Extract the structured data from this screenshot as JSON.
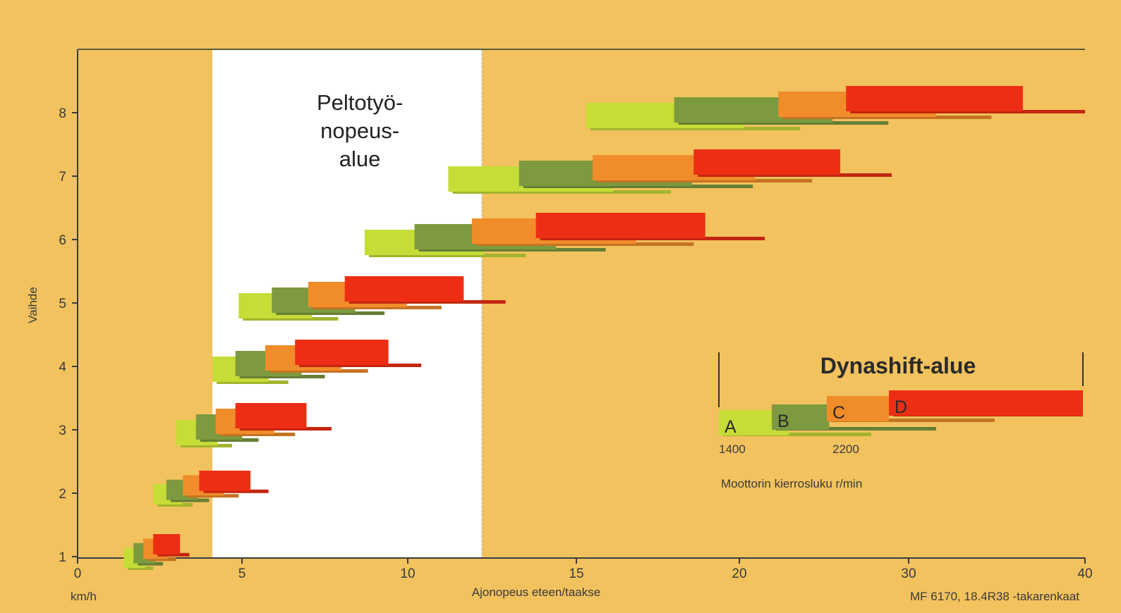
{
  "chart_data": {
    "type": "bar",
    "subtype": "floating-range",
    "xlabel": "Ajonopeus eteen/taakse",
    "x_unit": "km/h",
    "ylabel": "Vaihde",
    "x_ticks": [
      {
        "value": 0,
        "label": "0"
      },
      {
        "value": 5,
        "label": "5"
      },
      {
        "value": 10,
        "label": "10"
      },
      {
        "value": 15,
        "label": "15"
      },
      {
        "value": 20,
        "label": "20"
      },
      {
        "value": 30,
        "label": "30"
      },
      {
        "value": 40,
        "label": "40"
      }
    ],
    "y_ticks": [
      "1",
      "2",
      "3",
      "4",
      "5",
      "6",
      "7",
      "8"
    ],
    "field_zone": {
      "label_lines": [
        "Peltotyö-",
        "nopeus-",
        "alue"
      ],
      "x_range": [
        4.1,
        12.2
      ]
    },
    "series_colors": {
      "A": "#c6dc37",
      "B": "#7d9a3f",
      "C": "#f08c2a",
      "D": "#ee2e14"
    },
    "gears": [
      {
        "gear": 1,
        "ranges": {
          "A": [
            1.4,
            2.3
          ],
          "B": [
            1.7,
            2.6
          ],
          "C": [
            2.0,
            3.0
          ],
          "D": [
            2.3,
            3.4
          ]
        }
      },
      {
        "gear": 2,
        "ranges": {
          "A": [
            2.3,
            3.5
          ],
          "B": [
            2.7,
            4.0
          ],
          "C": [
            3.2,
            4.9
          ],
          "D": [
            3.7,
            5.8
          ]
        }
      },
      {
        "gear": 3,
        "ranges": {
          "A": [
            3.0,
            4.7
          ],
          "B": [
            3.6,
            5.5
          ],
          "C": [
            4.2,
            6.6
          ],
          "D": [
            4.8,
            7.7
          ]
        }
      },
      {
        "gear": 4,
        "ranges": {
          "A": [
            4.1,
            6.4
          ],
          "B": [
            4.8,
            7.5
          ],
          "C": [
            5.7,
            8.8
          ],
          "D": [
            6.6,
            10.4
          ]
        }
      },
      {
        "gear": 5,
        "ranges": {
          "A": [
            4.9,
            7.9
          ],
          "B": [
            5.9,
            9.3
          ],
          "C": [
            7.0,
            11.0
          ],
          "D": [
            8.1,
            12.9
          ]
        }
      },
      {
        "gear": 6,
        "ranges": {
          "A": [
            8.7,
            13.5
          ],
          "B": [
            10.2,
            15.9
          ],
          "C": [
            11.9,
            18.6
          ],
          "D": [
            13.8,
            21.5
          ]
        }
      },
      {
        "gear": 7,
        "ranges": {
          "A": [
            11.2,
            17.9
          ],
          "B": [
            13.3,
            20.8
          ],
          "C": [
            15.5,
            24.3
          ],
          "D": [
            18.6,
            29.0
          ]
        }
      },
      {
        "gear": 8,
        "ranges": {
          "A": [
            15.3,
            23.6
          ],
          "B": [
            18.0,
            28.8
          ],
          "C": [
            22.3,
            34.7
          ],
          "D": [
            26.3,
            40.0
          ]
        }
      }
    ],
    "legend": {
      "title": "Dynashift-alue",
      "letters": [
        "A",
        "B",
        "C",
        "D"
      ],
      "rpm_labels": [
        "1400",
        "2200"
      ],
      "rpm_caption": "Moottorin kierrosluku r/min"
    },
    "footnote": "MF 6170, 18.4R38 -takarenkaat"
  }
}
